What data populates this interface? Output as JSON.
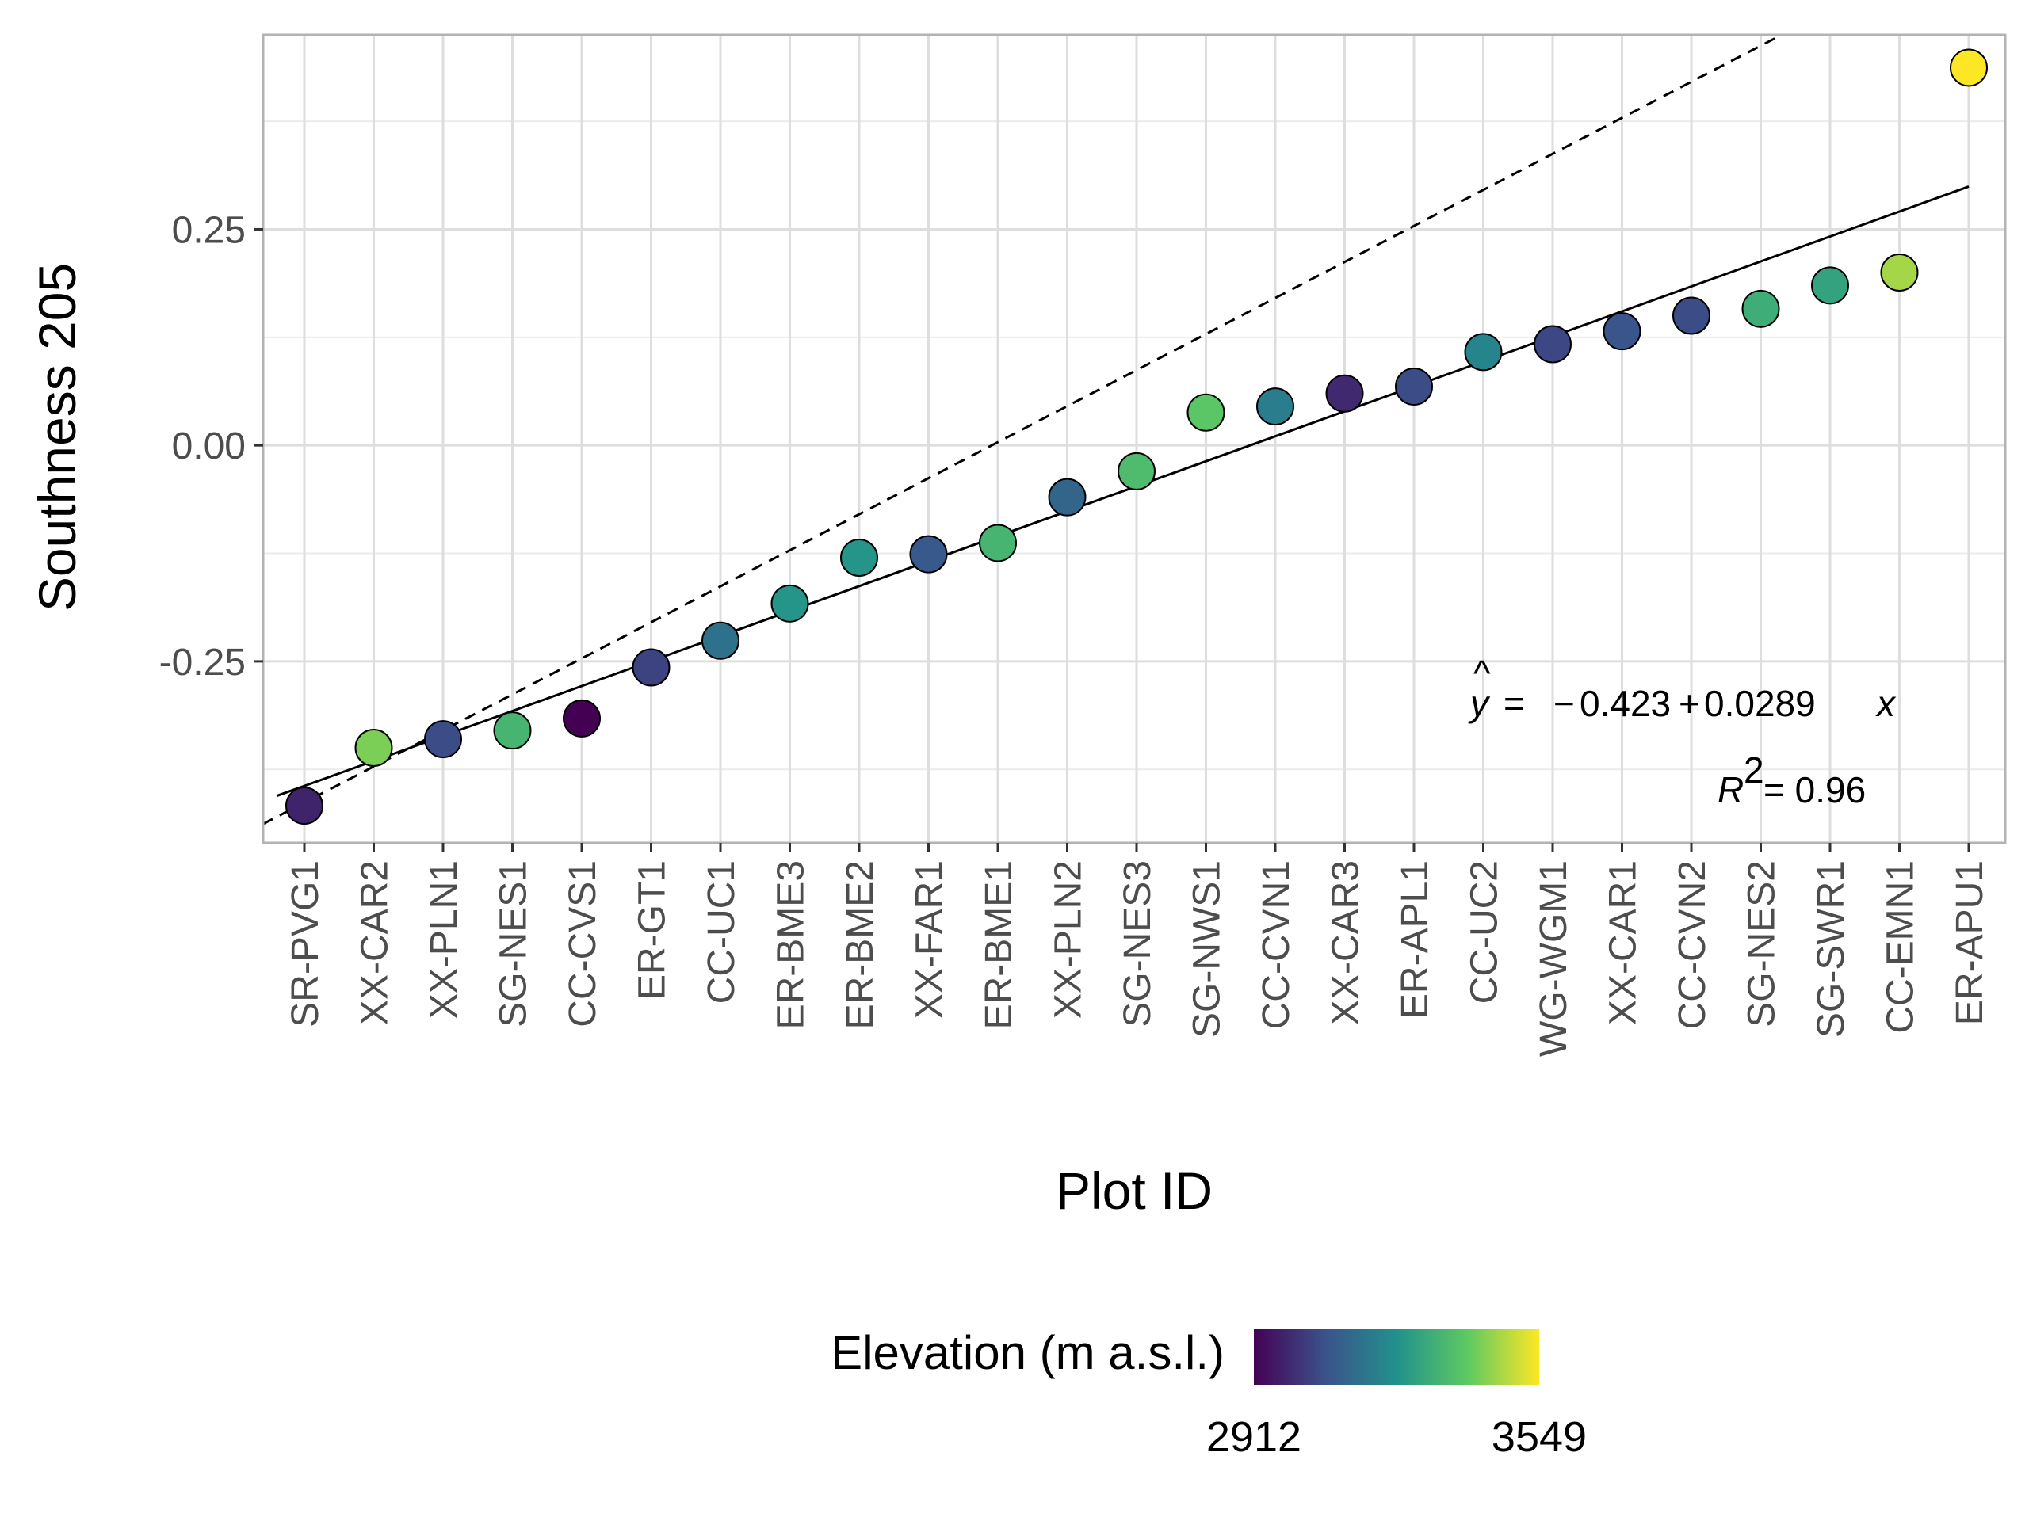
{
  "chart_data": {
    "type": "scatter",
    "xlabel": "Plot ID",
    "ylabel": "Southness 205",
    "ylim": [
      -0.46,
      0.475
    ],
    "yticks": [
      -0.25,
      0.0,
      0.25
    ],
    "ytick_labels": [
      "-0.25",
      "0.00",
      "0.25"
    ],
    "grid": true,
    "categories": [
      "SR-PVG1",
      "XX-CAR2",
      "XX-PLN1",
      "SG-NES1",
      "CC-CVS1",
      "ER-GT1",
      "CC-UC1",
      "ER-BME3",
      "ER-BME2",
      "XX-FAR1",
      "ER-BME1",
      "XX-PLN2",
      "SG-NES3",
      "SG-NWS1",
      "CC-CVN1",
      "XX-CAR3",
      "ER-APL1",
      "CC-UC2",
      "WG-WGM1",
      "XX-CAR1",
      "CC-CVN2",
      "SG-NES2",
      "SG-SWR1",
      "CC-EMN1",
      "ER-APU1"
    ],
    "values": [
      -0.417,
      -0.35,
      -0.34,
      -0.33,
      -0.316,
      -0.257,
      -0.226,
      -0.183,
      -0.13,
      -0.126,
      -0.113,
      -0.06,
      -0.03,
      0.038,
      0.045,
      0.06,
      0.068,
      0.108,
      0.117,
      0.132,
      0.15,
      0.158,
      0.185,
      0.2,
      0.437
    ],
    "elevation": [
      2980,
      3420,
      3060,
      3330,
      2912,
      3040,
      3150,
      3240,
      3240,
      3090,
      3330,
      3120,
      3350,
      3380,
      3180,
      2990,
      3060,
      3200,
      3050,
      3080,
      3060,
      3310,
      3280,
      3460,
      3549
    ],
    "fit_line": {
      "intercept": -0.423,
      "slope": 0.0289,
      "style": "solid"
    },
    "reference_line": {
      "intercept": -0.455,
      "slope": 0.0417,
      "style": "dashed"
    },
    "equation_prefix": "= ",
    "equation_terms": [
      "−",
      "0.423",
      "+",
      "0.0289",
      "x"
    ],
    "r2_value": "= 0.96",
    "legend": {
      "title": "Elevation (m a.s.l.)",
      "min": 2912,
      "max": 3549,
      "min_label": "2912",
      "max_label": "3549",
      "colors": [
        "#440154",
        "#3b528b",
        "#21918c",
        "#5ec962",
        "#fde725"
      ],
      "position": "bottom"
    }
  }
}
